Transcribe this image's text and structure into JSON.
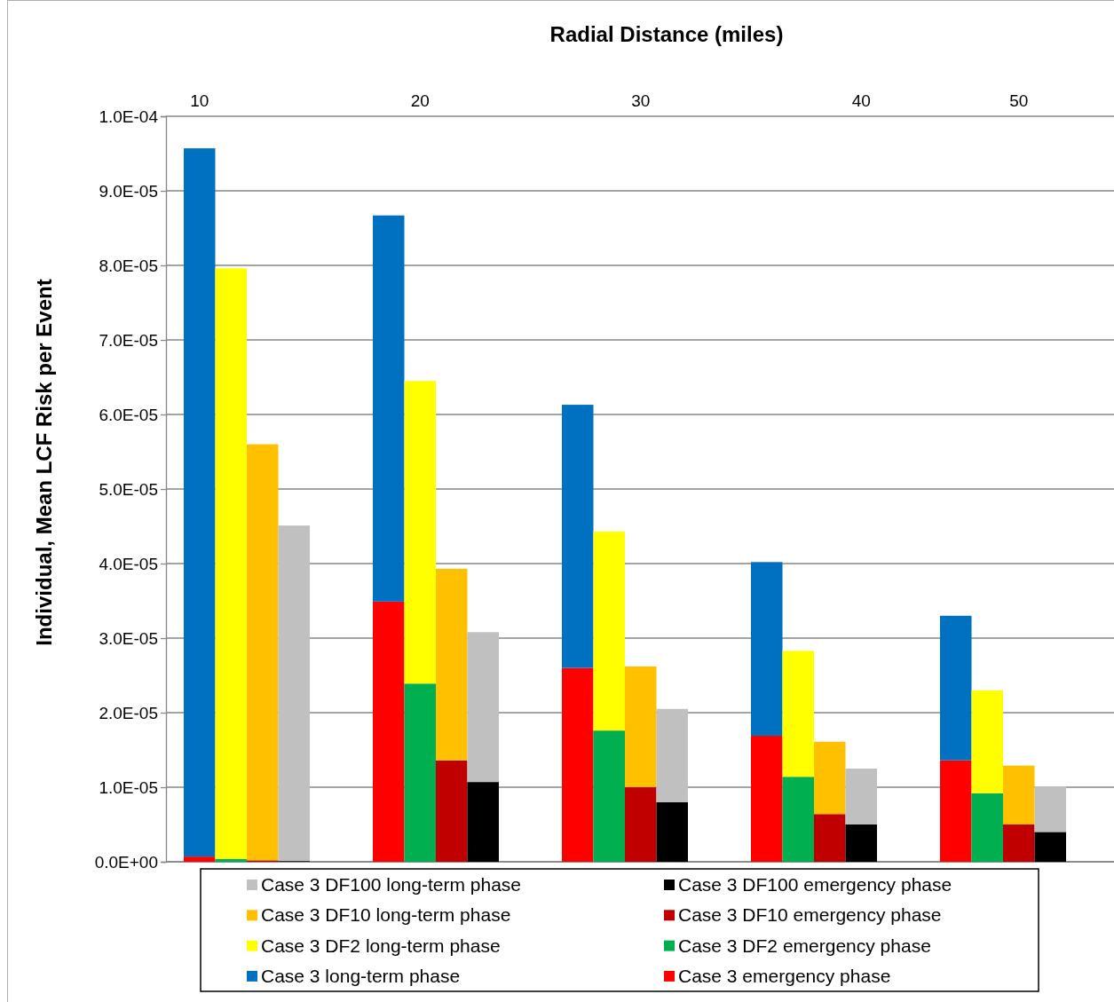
{
  "chart_data": {
    "type": "bar",
    "stacked": true,
    "xlabel": "Radial Distance (miles)",
    "ylabel": "Individual, Mean LCF Risk  per Event",
    "categories": [
      "10",
      null,
      null,
      null,
      null,
      null,
      null,
      "20",
      null,
      null,
      null,
      null,
      null,
      null,
      "30",
      null,
      null,
      null,
      null,
      null,
      null,
      "40",
      null,
      null,
      null,
      null,
      "50",
      null
    ],
    "ylim": [
      0,
      0.0001
    ],
    "yticks": [
      {
        "value": 0,
        "label": "0.0E+00"
      },
      {
        "value": 1e-05,
        "label": "1.0E-05"
      },
      {
        "value": 2e-05,
        "label": "2.0E-05"
      },
      {
        "value": 3e-05,
        "label": "3.0E-05"
      },
      {
        "value": 4e-05,
        "label": "4.0E-05"
      },
      {
        "value": 5e-05,
        "label": "5.0E-05"
      },
      {
        "value": 6e-05,
        "label": "6.0E-05"
      },
      {
        "value": 7e-05,
        "label": "7.0E-05"
      },
      {
        "value": 8e-05,
        "label": "8.0E-05"
      },
      {
        "value": 9e-05,
        "label": "9.0E-05"
      },
      {
        "value": 0.0001,
        "label": "1.0E-04"
      }
    ],
    "grid": "y",
    "legend": "bottom",
    "series": [
      {
        "name": "Case 3 emergency phase",
        "color": "#ff0000",
        "values": [
          7e-07,
          null,
          null,
          null,
          null,
          null,
          3.49e-05,
          null,
          null,
          null,
          null,
          null,
          2.6e-05,
          null,
          null,
          null,
          null,
          null,
          1.69e-05,
          null,
          null,
          null,
          null,
          null,
          1.36e-05,
          null,
          null,
          null
        ]
      },
      {
        "name": "Case 3 DF2 emergency phase",
        "color": "#00b050",
        "values": [
          null,
          4e-07,
          null,
          null,
          null,
          null,
          null,
          2.39e-05,
          null,
          null,
          null,
          null,
          null,
          1.76e-05,
          null,
          null,
          null,
          null,
          null,
          1.14e-05,
          null,
          null,
          null,
          null,
          null,
          9.2e-06,
          null,
          null
        ]
      },
      {
        "name": "Case 3 DF10 emergency phase",
        "color": "#c00000",
        "values": [
          null,
          null,
          2e-07,
          null,
          null,
          null,
          null,
          null,
          1.36e-05,
          null,
          null,
          null,
          null,
          null,
          1e-05,
          null,
          null,
          null,
          null,
          null,
          6.4e-06,
          null,
          null,
          null,
          null,
          null,
          5e-06,
          null
        ]
      },
      {
        "name": "Case 3 DF100 emergency phase",
        "color": "#000000",
        "values": [
          null,
          null,
          null,
          1e-07,
          null,
          null,
          null,
          null,
          null,
          1.07e-05,
          null,
          null,
          null,
          null,
          null,
          8e-06,
          null,
          null,
          null,
          null,
          null,
          5e-06,
          null,
          null,
          null,
          null,
          null,
          4e-06
        ]
      },
      {
        "name": "Case 3 long-term phase",
        "color": "#0070c0",
        "values": [
          9.5e-05,
          null,
          null,
          null,
          null,
          null,
          5.18e-05,
          null,
          null,
          null,
          null,
          null,
          3.53e-05,
          null,
          null,
          null,
          null,
          null,
          2.33e-05,
          null,
          null,
          null,
          null,
          null,
          1.94e-05,
          null,
          null,
          null
        ]
      },
      {
        "name": "Case 3 DF2 long-term phase",
        "color": "#ffff00",
        "values": [
          null,
          7.92e-05,
          null,
          null,
          null,
          null,
          null,
          4.06e-05,
          null,
          null,
          null,
          null,
          null,
          2.67e-05,
          null,
          null,
          null,
          null,
          null,
          1.69e-05,
          null,
          null,
          null,
          null,
          null,
          1.38e-05,
          null,
          null
        ]
      },
      {
        "name": "Case 3 DF10 long-term phase",
        "color": "#ffc000",
        "values": [
          null,
          null,
          5.58e-05,
          null,
          null,
          null,
          null,
          null,
          2.57e-05,
          null,
          null,
          null,
          null,
          null,
          1.62e-05,
          null,
          null,
          null,
          null,
          null,
          9.7e-06,
          null,
          null,
          null,
          null,
          null,
          7.9e-06,
          null
        ]
      },
      {
        "name": "Case 3 DF100 long-term phase",
        "color": "#c0c0c0",
        "values": [
          null,
          null,
          null,
          4.5e-05,
          null,
          null,
          null,
          null,
          null,
          2.01e-05,
          null,
          null,
          null,
          null,
          null,
          1.25e-05,
          null,
          null,
          null,
          null,
          null,
          7.5e-06,
          null,
          null,
          null,
          null,
          null,
          6.1e-06
        ]
      }
    ]
  }
}
